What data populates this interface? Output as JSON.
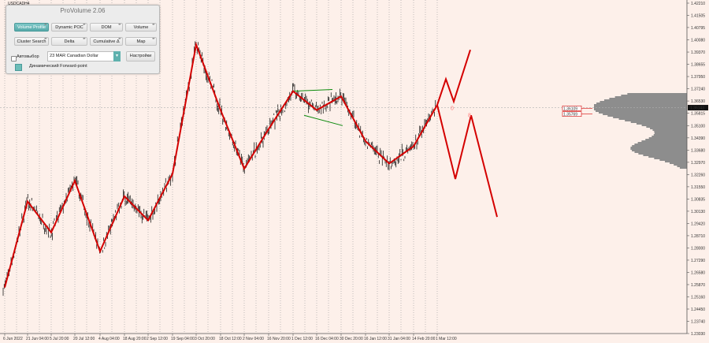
{
  "window": {
    "symbol_label": "USDCADH4"
  },
  "panel": {
    "title": "ProVolume 2.06",
    "buttons": [
      {
        "label": "Volume Profile",
        "active": true
      },
      {
        "label": "Dynamic POC",
        "active": false
      },
      {
        "label": "DOM",
        "active": false
      },
      {
        "label": "Volume",
        "active": false
      },
      {
        "label": "Cluster Search",
        "active": false
      },
      {
        "label": "Delta",
        "active": false
      },
      {
        "label": "Cumulative Δ",
        "active": false
      },
      {
        "label": "Map",
        "active": false
      }
    ],
    "auto_label": "Автовыбор",
    "contract_value": "23 MAR Canadian Dollar",
    "settings_label": "Настройки",
    "forward_label": "Динамический Forward-point"
  },
  "price_axis": {
    "ticks": [
      "1.42210",
      "1.41505",
      "1.40795",
      "1.40080",
      "1.39370",
      "1.38655",
      "1.37950",
      "1.37240",
      "1.36530",
      "1.35815",
      "1.35100",
      "1.34390",
      "1.33680",
      "1.32970",
      "1.32260",
      "1.31550",
      "1.30835",
      "1.30130",
      "1.29420",
      "1.28710",
      "1.28000",
      "1.27290",
      "1.26580",
      "1.25870",
      "1.25160",
      "1.24450",
      "1.23740",
      "1.23030"
    ],
    "current_price": "1.36143",
    "level_labels": [
      "1.36109",
      "1.35769"
    ]
  },
  "time_axis": {
    "labels": [
      "6 Jun 2022",
      "21 Jun 04:00",
      "5 Jul 20:00",
      "20 Jul 12:00",
      "4 Aug 04:00",
      "18 Aug 20:00",
      "2 Sep 12:00",
      "19 Sep 04:00",
      "3 Oct 20:00",
      "18 Oct 12:00",
      "2 Nov 04:00",
      "16 Nov 20:00",
      "1 Dec 12:00",
      "16 Dec 04:00",
      "30 Dec 20:00",
      "16 Jan 12:00",
      "31 Jan 04:00",
      "14 Feb 20:00",
      "1 Mar 12:00"
    ]
  },
  "annotations": {
    "marker_a": "0",
    "marker_b": "8"
  },
  "colors": {
    "zigzag": "#d40000",
    "channel": "#0c8a0c",
    "candles": "#000000",
    "profile": "#8d8d8d",
    "background": "#fdf0ea",
    "grid": "#9a9a9a"
  },
  "chart_data": {
    "type": "line",
    "title": "",
    "xlabel": "",
    "ylabel": "",
    "x": [
      "6 Jun 2022",
      "21 Jun 04:00",
      "5 Jul 20:00",
      "20 Jul 12:00",
      "4 Aug 04:00",
      "18 Aug 20:00",
      "2 Sep 12:00",
      "19 Sep 04:00",
      "3 Oct 20:00",
      "18 Oct 12:00",
      "2 Nov 04:00",
      "16 Nov 20:00",
      "1 Dec 12:00",
      "16 Dec 04:00",
      "30 Dec 20:00",
      "16 Jan 12:00",
      "31 Jan 04:00",
      "14 Feb 20:00",
      "1 Mar 12:00"
    ],
    "ylim": [
      1.2303,
      1.4221
    ],
    "series": [
      {
        "role": "zigzag",
        "points": [
          [
            "6 Jun 2022",
            1.257
          ],
          [
            "21 Jun 04:00",
            1.307
          ],
          [
            "5 Jul 20:00",
            1.289
          ],
          [
            "20 Jul 12:00",
            1.319
          ],
          [
            "4 Aug 04:00",
            1.278
          ],
          [
            "18 Aug 20:00",
            1.31
          ],
          [
            "2 Sep 12:00",
            1.296
          ],
          [
            "19 Sep 04:00",
            1.323
          ],
          [
            "3 Oct 20:00",
            1.398
          ],
          [
            "18 Oct 12:00",
            1.36
          ],
          [
            "2 Nov 04:00",
            1.326
          ],
          [
            "16 Nov 20:00",
            1.349
          ],
          [
            "1 Dec 12:00",
            1.371
          ],
          [
            "16 Dec 04:00",
            1.36
          ],
          [
            "30 Dec 20:00",
            1.368
          ],
          [
            "16 Jan 12:00",
            1.342
          ],
          [
            "31 Jan 04:00",
            1.329
          ],
          [
            "14 Feb 20:00",
            1.339
          ],
          [
            "1 Mar 12:00",
            1.363
          ]
        ]
      },
      {
        "role": "projection",
        "points": [
          [
            "1 Mar 12:00",
            1.363
          ],
          [
            null,
            1.378
          ],
          [
            null,
            1.365
          ],
          [
            null,
            1.395
          ]
        ]
      },
      {
        "role": "projection",
        "points": [
          [
            "1 Mar 12:00",
            1.363
          ],
          [
            null,
            1.32
          ],
          [
            null,
            1.357
          ],
          [
            null,
            1.298
          ]
        ]
      }
    ]
  }
}
